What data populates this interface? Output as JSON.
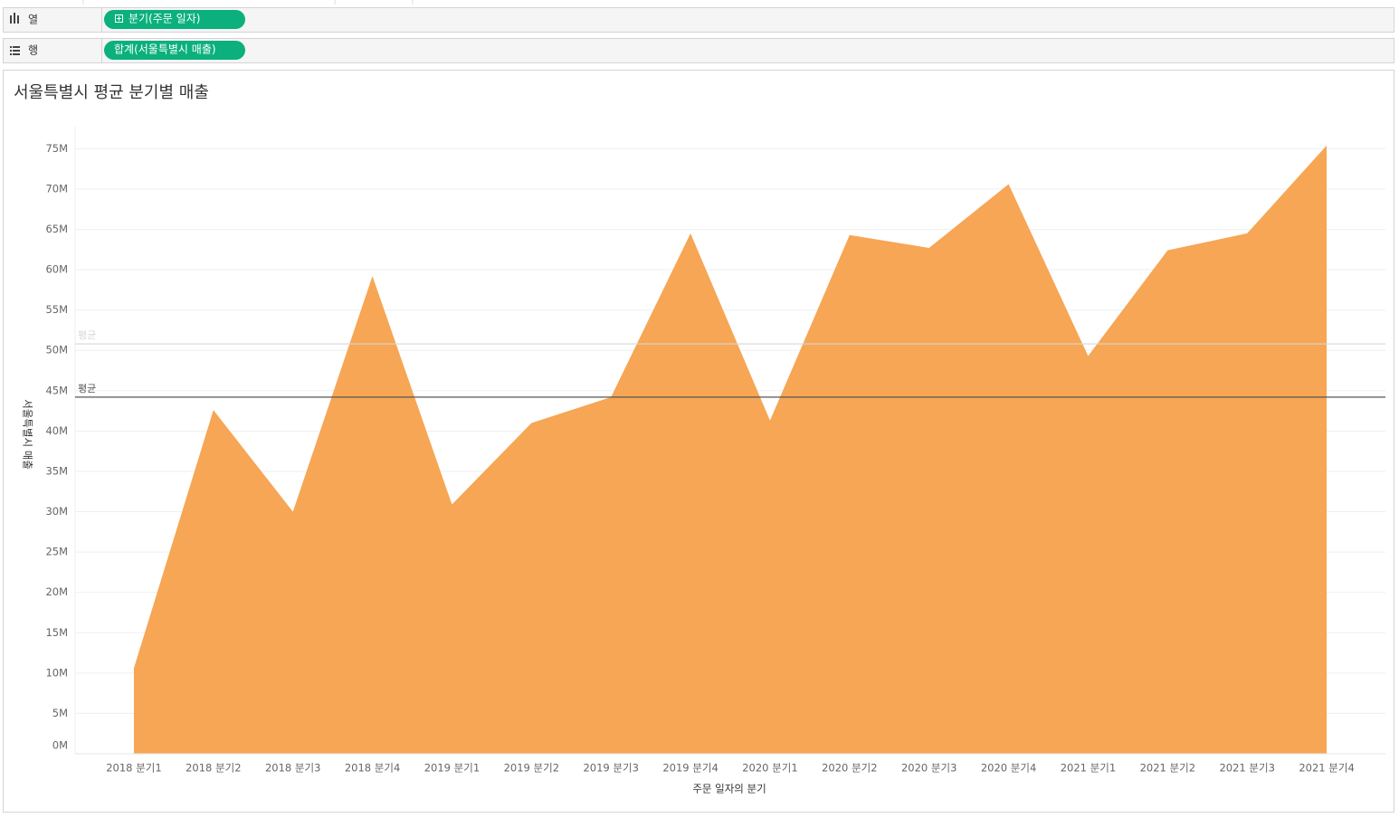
{
  "shelves": {
    "columns": {
      "label": "열",
      "pill": "분기(주문 일자)"
    },
    "rows": {
      "label": "행",
      "pill": "합계(서울특별시 매출)"
    }
  },
  "chart_data": {
    "type": "area",
    "title": "서울특별시 평균 분기별 매출",
    "x_label": "주문 일자의 분기",
    "y_label": "서울특별시 매출",
    "categories": [
      "2018 분기1",
      "2018 분기2",
      "2018 분기3",
      "2018 분기4",
      "2019 분기1",
      "2019 분기2",
      "2019 분기3",
      "2019 분기4",
      "2020 분기1",
      "2020 분기2",
      "2020 분기3",
      "2020 분기4",
      "2021 분기1",
      "2021 분기2",
      "2021 분기3",
      "2021 분기4"
    ],
    "values": [
      10.6,
      42.6,
      30.0,
      59.2,
      30.9,
      41.0,
      44.2,
      64.5,
      41.3,
      64.3,
      62.7,
      70.6,
      49.3,
      62.4,
      64.5,
      75.4
    ],
    "color": "#f6a654",
    "ylim": [
      0,
      77.5
    ],
    "yticks": [
      {
        "value": 0,
        "label": "0M"
      },
      {
        "value": 5,
        "label": "5M"
      },
      {
        "value": 10,
        "label": "10M"
      },
      {
        "value": 15,
        "label": "15M"
      },
      {
        "value": 20,
        "label": "20M"
      },
      {
        "value": 25,
        "label": "25M"
      },
      {
        "value": 30,
        "label": "30M"
      },
      {
        "value": 35,
        "label": "35M"
      },
      {
        "value": 40,
        "label": "40M"
      },
      {
        "value": 45,
        "label": "45M"
      },
      {
        "value": 50,
        "label": "50M"
      },
      {
        "value": 55,
        "label": "55M"
      },
      {
        "value": 60,
        "label": "60M"
      },
      {
        "value": 65,
        "label": "65M"
      },
      {
        "value": 70,
        "label": "70M"
      },
      {
        "value": 75,
        "label": "75M"
      }
    ],
    "grid": true,
    "reference_lines": [
      {
        "label": "평균",
        "value": 50.8,
        "color": "#d6d6d6"
      },
      {
        "label": "평균",
        "value": 44.2,
        "color": "#555555"
      }
    ]
  }
}
